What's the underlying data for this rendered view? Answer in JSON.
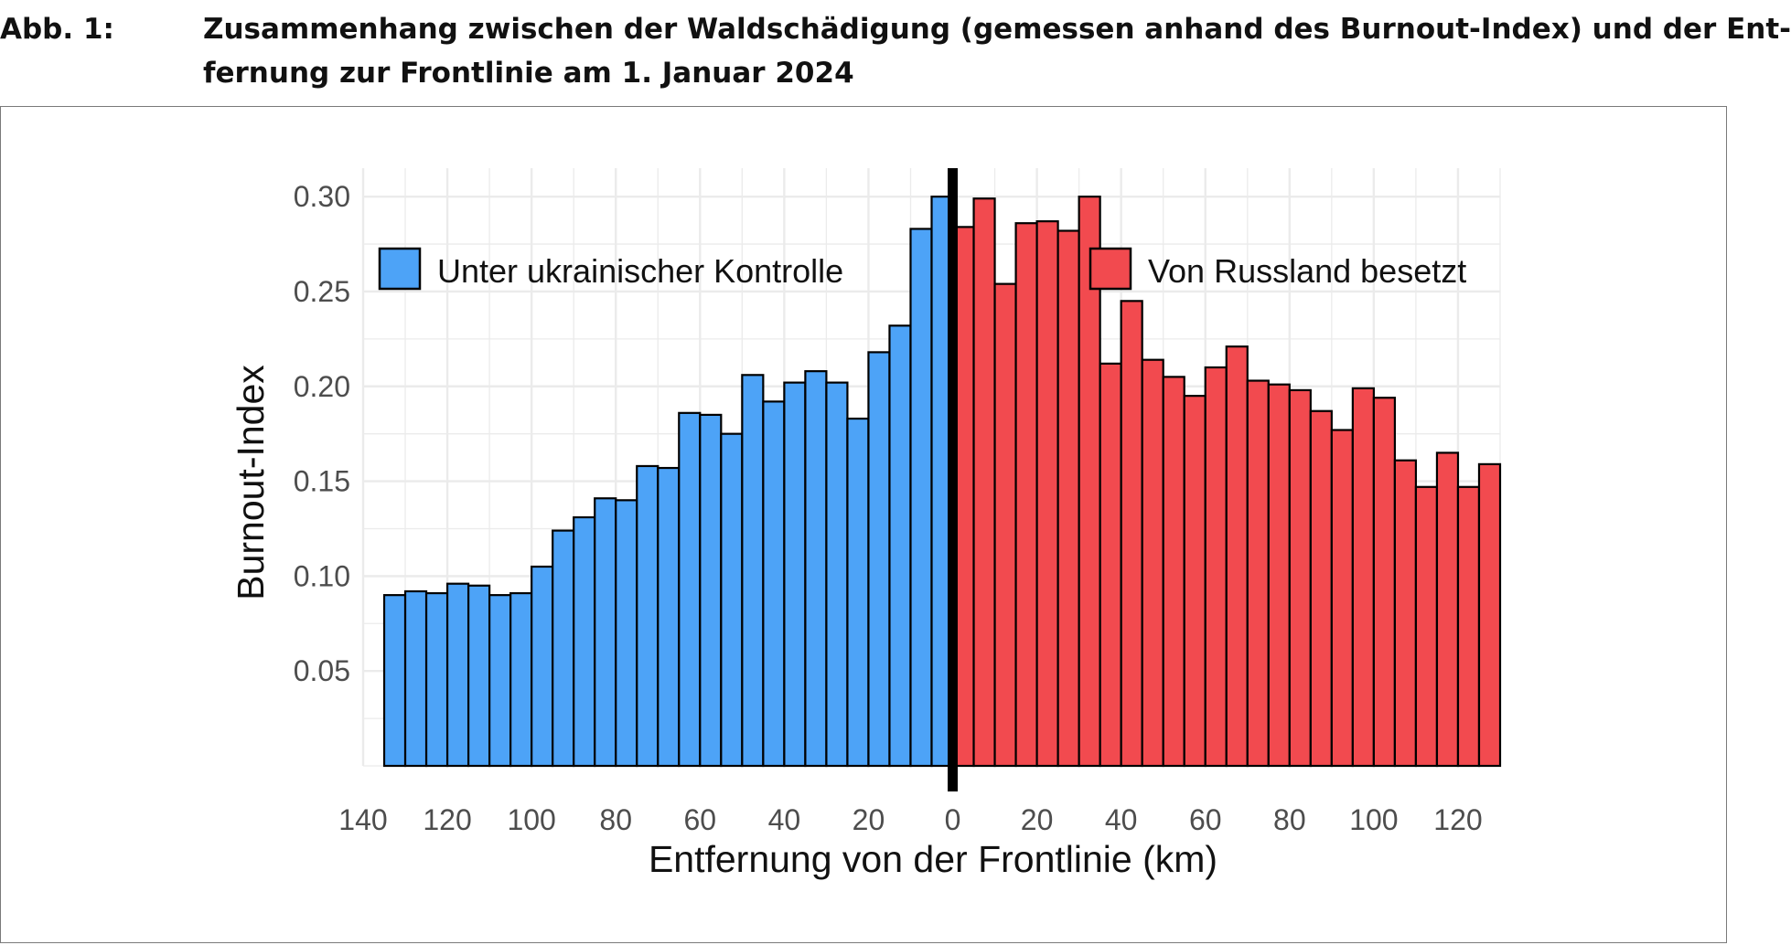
{
  "caption": {
    "label": "Abb. 1:",
    "line1": "Zusammenhang zwischen der Waldschädigung (gemessen anhand des Burnout-Index) und der Ent-",
    "line2": "fernung zur Frontlinie am 1. Januar 2024"
  },
  "colors": {
    "ukraine": "#4da3f7",
    "russia": "#f24a4f",
    "outline": "#000000",
    "frontline": "#000000",
    "grid": "#ebebeb"
  },
  "chart_data": {
    "type": "bar",
    "title": "Zusammenhang zwischen der Waldschädigung (gemessen anhand des Burnout-Index) und der Entfernung zur Frontlinie am 1. Januar 2024",
    "xlabel": "Entfernung von der Frontlinie (km)",
    "ylabel": "Burnout-Index",
    "xlim": [
      -140,
      130
    ],
    "ylim": [
      0,
      0.315
    ],
    "bar_width_km": 5,
    "frontline_x": 0,
    "grid": true,
    "legend_position": "top",
    "x_ticks": [
      -140,
      -120,
      -100,
      -80,
      -60,
      -40,
      -20,
      0,
      20,
      40,
      60,
      80,
      100,
      120
    ],
    "x_tick_labels": [
      "140",
      "120",
      "100",
      "80",
      "60",
      "40",
      "20",
      "0",
      "20",
      "40",
      "60",
      "80",
      "100",
      "120"
    ],
    "y_ticks": [
      0.05,
      0.1,
      0.15,
      0.2,
      0.25,
      0.3
    ],
    "y_tick_labels": [
      "0.05",
      "0.10",
      "0.15",
      "0.20",
      "0.25",
      "0.30"
    ],
    "series": [
      {
        "name": "Unter ukrainischer Kontrolle",
        "color": "#4da3f7",
        "x": [
          -132.5,
          -127.5,
          -122.5,
          -117.5,
          -112.5,
          -107.5,
          -102.5,
          -97.5,
          -92.5,
          -87.5,
          -82.5,
          -77.5,
          -72.5,
          -67.5,
          -62.5,
          -57.5,
          -52.5,
          -47.5,
          -42.5,
          -37.5,
          -32.5,
          -27.5,
          -22.5,
          -17.5,
          -12.5,
          -7.5,
          -2.5
        ],
        "values": [
          0.09,
          0.092,
          0.091,
          0.096,
          0.095,
          0.09,
          0.091,
          0.105,
          0.124,
          0.131,
          0.141,
          0.14,
          0.158,
          0.157,
          0.186,
          0.185,
          0.175,
          0.206,
          0.192,
          0.202,
          0.208,
          0.202,
          0.183,
          0.218,
          0.232,
          0.283,
          0.3
        ]
      },
      {
        "name": "Von Russland besetzt",
        "color": "#f24a4f",
        "x": [
          2.5,
          7.5,
          12.5,
          17.5,
          22.5,
          27.5,
          32.5,
          37.5,
          42.5,
          47.5,
          52.5,
          57.5,
          62.5,
          67.5,
          72.5,
          77.5,
          82.5,
          87.5,
          92.5,
          97.5,
          102.5,
          107.5,
          112.5,
          117.5,
          122.5,
          127.5
        ],
        "values": [
          0.284,
          0.299,
          0.254,
          0.286,
          0.287,
          0.282,
          0.3,
          0.212,
          0.245,
          0.214,
          0.205,
          0.195,
          0.21,
          0.221,
          0.203,
          0.201,
          0.198,
          0.187,
          0.177,
          0.199,
          0.194,
          0.161,
          0.147,
          0.165,
          0.147,
          0.159
        ]
      }
    ]
  }
}
